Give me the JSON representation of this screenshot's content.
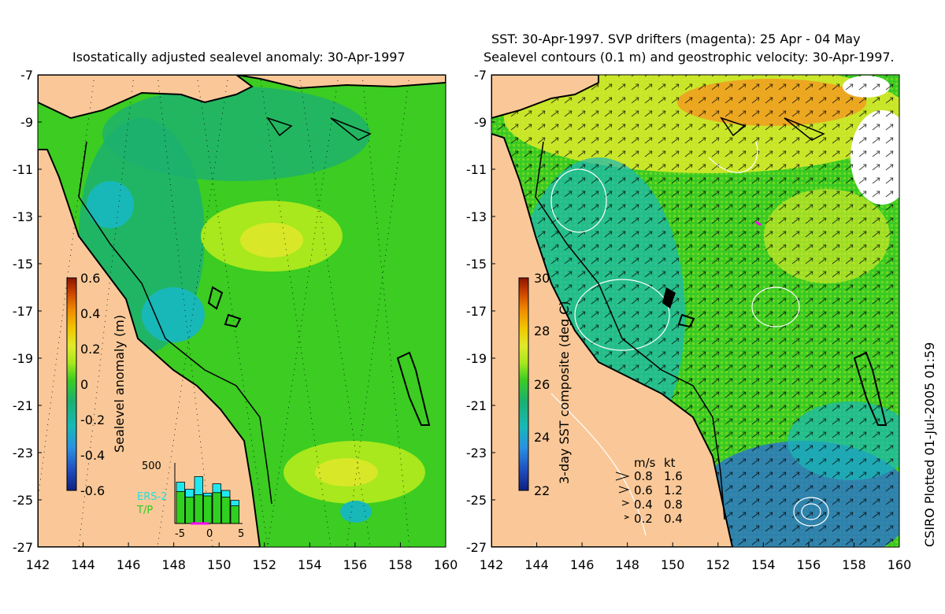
{
  "left": {
    "title": "Isostatically adjusted sealevel anomaly: 30-Apr-1997",
    "colorbar": {
      "label": "Sealevel anomaly (m)",
      "ticks": [
        "0.6",
        "0.4",
        "0.2",
        "0",
        "-0.2",
        "-0.4",
        "-0.6"
      ],
      "colors": [
        "#8b1400",
        "#cc4400",
        "#f08a00",
        "#f0c800",
        "#e0ea2a",
        "#a8e81c",
        "#3ccc22",
        "#1bb070",
        "#18b8b8",
        "#2a90e0",
        "#2050c0",
        "#102080"
      ]
    },
    "histogram": {
      "ymax_label": "500",
      "xticks": [
        "-5",
        "0",
        "5"
      ],
      "legend": [
        "ERS-2",
        "T/P"
      ],
      "ers2_values": [
        0.75,
        0.62,
        0.85,
        0.55,
        0.72,
        0.6,
        0.42
      ],
      "tp_values": [
        0.58,
        0.48,
        0.52,
        0.5,
        0.56,
        0.48,
        0.32
      ]
    }
  },
  "right": {
    "title_line1": "SST: 30-Apr-1997. SVP drifters (magenta): 25 Apr - 04 May",
    "title_line2": "Sealevel contours (0.1 m) and geostrophic velocity: 30-Apr-1997.",
    "colorbar": {
      "label": "3-day SST composite (deg C)",
      "ticks": [
        "30",
        "28",
        "26",
        "24",
        "22"
      ],
      "colors": [
        "#8b1400",
        "#cc4400",
        "#f08a00",
        "#f0c800",
        "#e0ea2a",
        "#a8e81c",
        "#3ccc22",
        "#1bb070",
        "#18b8b8",
        "#2a90e0",
        "#2050c0",
        "#102080"
      ]
    },
    "velocity_key": {
      "header_ms": "m/s",
      "header_kt": "kt",
      "rows": [
        {
          "ms": "0.8",
          "kt": "1.6"
        },
        {
          "ms": "0.6",
          "kt": "1.2"
        },
        {
          "ms": "0.4",
          "kt": "0.8"
        },
        {
          "ms": "0.2",
          "kt": "0.4"
        }
      ]
    }
  },
  "axes": {
    "lat_ticks": [
      "-7",
      "-9",
      "-11",
      "-13",
      "-15",
      "-17",
      "-19",
      "-21",
      "-23",
      "-25",
      "-27"
    ],
    "lon_ticks": [
      "142",
      "144",
      "146",
      "148",
      "150",
      "152",
      "154",
      "156",
      "158",
      "160"
    ]
  },
  "colors": {
    "land": "#fac898",
    "sea_green": "#3ccc22",
    "sea_teal": "#1bb070",
    "sea_yellow": "#d8e828",
    "sea_blue": "#18b8b8",
    "sst_orange": "#f0a020",
    "sst_deep_blue": "#2a70d0",
    "drifter": "#ff00ff"
  },
  "credit": "CSIRO Plotted 01-Jul-2005 01:59"
}
